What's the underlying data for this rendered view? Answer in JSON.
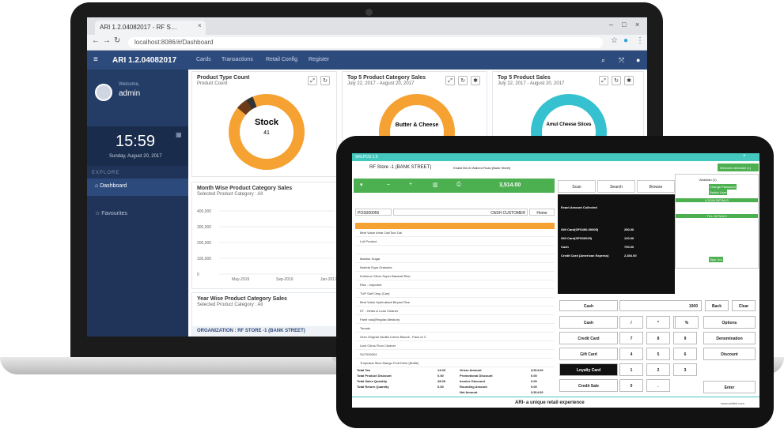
{
  "browser": {
    "tab_title": "ARI 1.2.04082017 - RF S…",
    "url": "localhost:8086/#/Dashboard"
  },
  "app": {
    "title": "ARI 1.2.04082017",
    "nav": [
      "Cards",
      "Transactions",
      "Retail Config",
      "Register"
    ]
  },
  "sidebar": {
    "welcome": "Welcome,",
    "user": "admin",
    "time": "15:59",
    "date": "Sunday, August 20, 2017",
    "section": "EXPLORE",
    "items": [
      "Dashboard",
      "Favourites"
    ]
  },
  "cards": {
    "product_type": {
      "title": "Product Type Count",
      "subtitle": "Product Count",
      "center_label": "Stock",
      "center_value": "41"
    },
    "top5_category": {
      "title": "Top 5 Product Category Sales",
      "subtitle": "July 22, 2017 - August 20, 2017",
      "center_label": "Butter & Cheese"
    },
    "top5_product": {
      "title": "Top 5 Product Sales",
      "subtitle": "July 22, 2017 - August 20, 2017",
      "center_label": "Amul Cheese Slices"
    },
    "month_wise": {
      "title": "Month Wise Product Category Sales",
      "subtitle": "Selected Product Category : All"
    },
    "year_wise": {
      "title": "Year Wise Product Category Sales",
      "subtitle": "Selected Product Category : All"
    },
    "organization": "ORGANIZATION : RF STORE -1 (BANK STREET)"
  },
  "chart_data": {
    "type": "line",
    "x": [
      "May-2016",
      "Sep-2016",
      "Jan-2017"
    ],
    "yticks": [
      "400,000",
      "300,000",
      "200,000",
      "100,000",
      "0"
    ],
    "ylim": [
      0,
      400000
    ]
  },
  "pos": {
    "brand": "SRLPOS 1.6",
    "store": "RF Store -1 (BANK STREET)",
    "address": "Khalid Bin Al Waleed Road (Bank Street)",
    "total": "3,514.00",
    "invoice": "POS000056",
    "customer": "CASH CUSTOMER",
    "home": "Home",
    "top_buttons": [
      "Scan",
      "Search",
      "Browse"
    ],
    "user_panel": {
      "welcome": "Welcome Abdullah (1)",
      "name": "Abdullah (1)",
      "change_password": "Change Password",
      "switch_user": "Switch User",
      "login_details": "LOGIN DETAILS",
      "till_details": "TILL DETAILS",
      "sign_out": "Sign Out"
    },
    "exact_amount": "Exact Amount Collected",
    "payments": [
      {
        "label": "Gift Card(GFS450-00005)",
        "amount": "250.00"
      },
      {
        "label": "Gift Card(GFS00025)",
        "amount": "120.00"
      },
      {
        "label": "Cash",
        "amount": "790.00"
      },
      {
        "label": "Credit Card (American Express)",
        "amount": "2,354.00"
      }
    ],
    "items": [
      "Best Value Arhar Dal/Toor Dal",
      "Loli Product",
      "",
      "Madhur Sugar",
      "Nutrela Soya Granules",
      "Kohinoor Silver Super Basmati Rice",
      "Rice - Imported",
      "TUP Salt Crisp (Can)",
      "Best Value Hyderabadi Biryani Rice",
      "KT - Herbs & Lean Cleaner",
      "Parle rusk(Regular-Medium)",
      "Tomato",
      "Oreo Original Vanilla Creme Biscuit - Pack of 3",
      "Lizol Citrus Floor Cleaner",
      "SUT000004",
      "Tropicana Slice Mango Fruit Drink (Bottle)"
    ],
    "keypad": {
      "cash_label": "Cash",
      "amount": "1000",
      "back": "Back",
      "clear": "Clear",
      "methods": [
        "Cash",
        "Credit Card",
        "Gift Card",
        "Loyalty Card",
        "Credit Sale"
      ],
      "ops": [
        "%",
        "Options",
        "Denomination",
        "Discount"
      ],
      "enter": "Enter",
      "keys": [
        "/",
        "*",
        "-",
        "7",
        "8",
        "9",
        "4",
        "5",
        "6",
        "1",
        "2",
        "3",
        "0",
        "."
      ]
    },
    "totals": [
      {
        "label": "Total Tax",
        "value": "14.00",
        "label2": "Gross Amount",
        "value2": "3,514.00"
      },
      {
        "label": "Total Product Discount",
        "value": "0.00",
        "label2": "Promotional Discount",
        "value2": "0.00"
      },
      {
        "label": "Total Sales Quantity",
        "value": "28.00",
        "label2": "Invoice Discount",
        "value2": "0.00"
      },
      {
        "label": "Total Return Quantity",
        "value": "0.00",
        "label2": "Rounding Amount",
        "value2": "0.00"
      },
      {
        "label": "",
        "value": "",
        "label2": "Net Amount",
        "value2": "3,514.00"
      }
    ],
    "footer_tagline": "ARI- a unique retail experience",
    "footer_url": "www.aniltek.com"
  },
  "colors": {
    "header": "#2d4a7c",
    "sidebar": "#1f3458",
    "orange": "#f5a233",
    "teal": "#35c1cf",
    "green": "#4caf50"
  }
}
